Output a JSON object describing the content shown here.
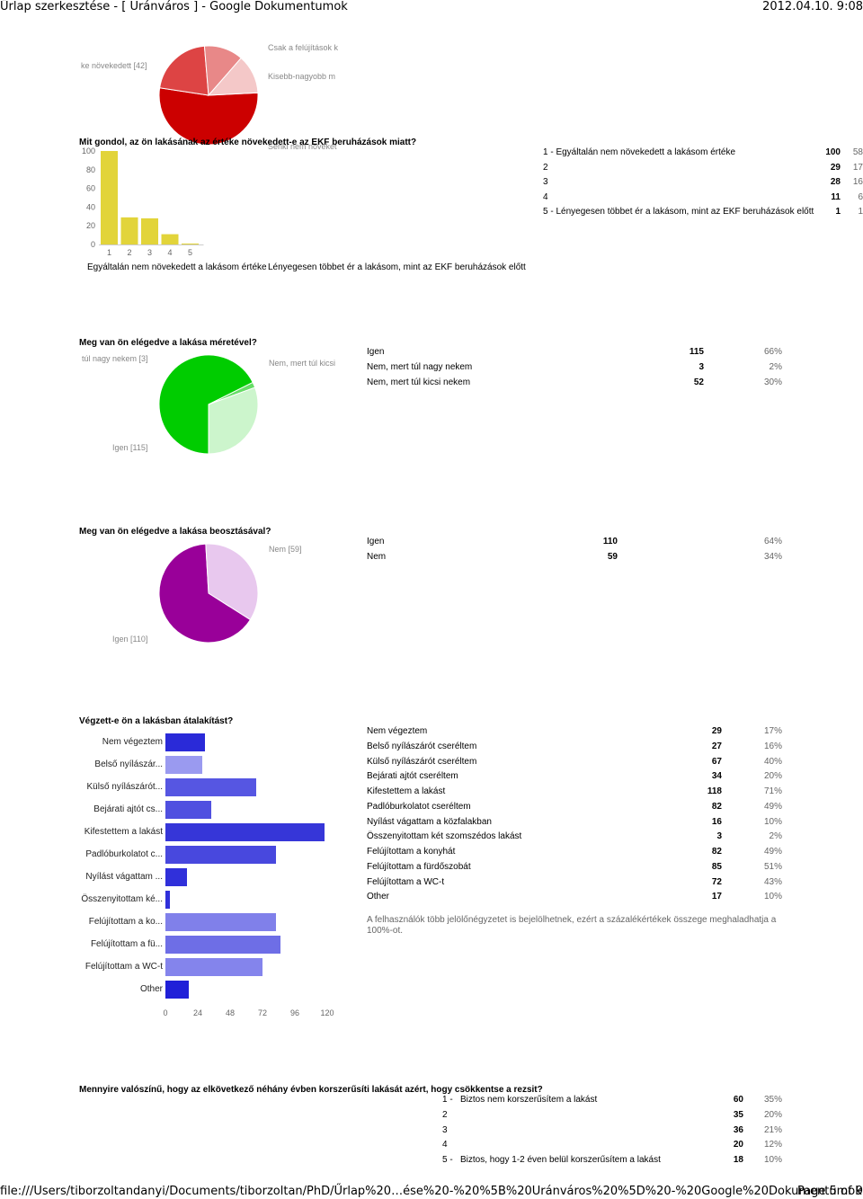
{
  "header": {
    "title": "Űrlap szerkesztése - [ Uránváros ] - Google Dokumentumok",
    "datetime": "2012.04.10. 9:08"
  },
  "footer": {
    "path": "file:///Users/tiborzoltandanyi/Documents/tiborzoltan/PhD/Űrlap%20…ése%20-%20%5B%20Uránváros%20%5D%20-%20Google%20Dokumentumok.html",
    "page": "Page 5 of 9"
  },
  "top_pie": {
    "labels": [
      "ke növekedett [42]",
      "Csak a felújítások k",
      "Kisebb-nagyobb m",
      "Senki nem növeket"
    ],
    "colors": [
      "#cc0000",
      "#dd4444",
      "#e88888",
      "#f4c8c8"
    ]
  },
  "q1": {
    "question": "Mit gondol, az ön lakásának az értéke növekedett-e az EKF beruházások miatt?",
    "rows": [
      {
        "label": "1 - Egyáltalán nem növekedett a lakásom értéke",
        "count": "100",
        "pct": "58"
      },
      {
        "label": "2",
        "count": "29",
        "pct": "17"
      },
      {
        "label": "3",
        "count": "28",
        "pct": "16"
      },
      {
        "label": "4",
        "count": "11",
        "pct": "6"
      },
      {
        "label": "5 - Lényegesen többet ér a lakásom, mint az EKF beruházások előtt",
        "count": "1",
        "pct": "1"
      }
    ],
    "left_caption": "Egyáltalán nem növekedett a lakásom értéke",
    "right_caption": "Lényegesen többet ér a lakásom, mint az EKF beruházások előtt",
    "color": "#e2d43a"
  },
  "q2": {
    "question": "Meg van ön elégedve a lakása méretével?",
    "rows": [
      {
        "label": "Igen",
        "count": "115",
        "pct": "66%"
      },
      {
        "label": "Nem, mert túl nagy nekem",
        "count": "3",
        "pct": "2%"
      },
      {
        "label": "Nem, mert túl kicsi nekem",
        "count": "52",
        "pct": "30%"
      }
    ],
    "pie_labels": [
      "túl nagy nekem [3]",
      "Nem, mert túl kicsi",
      "Igen [115]"
    ],
    "colors": [
      "#00cc00",
      "#66dd66",
      "#ccf5cc"
    ]
  },
  "q3": {
    "question": "Meg van ön elégedve a lakása beosztásával?",
    "rows": [
      {
        "label": "Igen",
        "count": "110",
        "pct": "64%"
      },
      {
        "label": "Nem",
        "count": "59",
        "pct": "34%"
      }
    ],
    "pie_labels": [
      "Nem [59]",
      "Igen [110]"
    ],
    "colors": [
      "#990099",
      "#e8c8ee"
    ]
  },
  "q4": {
    "question": "Végzett-e ön a lakásban átalakítást?",
    "rows": [
      {
        "label": "Nem végeztem",
        "count": "29",
        "pct": "17%"
      },
      {
        "label": "Belső nyílászárót cseréltem",
        "count": "27",
        "pct": "16%"
      },
      {
        "label": "Külső nyílászárót cseréltem",
        "count": "67",
        "pct": "40%"
      },
      {
        "label": "Bejárati ajtót cseréltem",
        "count": "34",
        "pct": "20%"
      },
      {
        "label": "Kifestettem a lakást",
        "count": "118",
        "pct": "71%"
      },
      {
        "label": "Padlóburkolatot cseréltem",
        "count": "82",
        "pct": "49%"
      },
      {
        "label": "Nyílást vágattam a közfalakban",
        "count": "16",
        "pct": "10%"
      },
      {
        "label": "Összenyitottam két szomszédos lakást",
        "count": "3",
        "pct": "2%"
      },
      {
        "label": "Felújítottam a konyhát",
        "count": "82",
        "pct": "49%"
      },
      {
        "label": "Felújítottam a fürdőszobát",
        "count": "85",
        "pct": "51%"
      },
      {
        "label": "Felújítottam a WC-t",
        "count": "72",
        "pct": "43%"
      },
      {
        "label": "Other",
        "count": "17",
        "pct": "10%"
      }
    ],
    "note": "A felhasználók több jelölőnégyzetet is bejelölhetnek, ezért a százalékértékek összege meghaladhatja a 100%-ot."
  },
  "q5": {
    "question": "Mennyire valószínű, hogy az elkövetkező néhány évben korszerűsíti lakását azért, hogy csökkentse a rezsit?",
    "rows": [
      {
        "num": "1 -",
        "label": "Biztos nem korszerűsítem a lakást",
        "count": "60",
        "pct": "35%"
      },
      {
        "num": "2",
        "label": "",
        "count": "35",
        "pct": "20%"
      },
      {
        "num": "3",
        "label": "",
        "count": "36",
        "pct": "21%"
      },
      {
        "num": "4",
        "label": "",
        "count": "20",
        "pct": "12%"
      },
      {
        "num": "5 -",
        "label": "Biztos, hogy 1-2 éven belül korszerűsítem a lakást",
        "count": "18",
        "pct": "10%"
      }
    ]
  },
  "chart_data": [
    {
      "type": "bar",
      "title": "Mit gondol, az ön lakásának az értéke növekedett-e az EKF beruházások miatt?",
      "categories": [
        "1",
        "2",
        "3",
        "4",
        "5"
      ],
      "values": [
        100,
        29,
        28,
        11,
        1
      ],
      "ylim": [
        0,
        100
      ],
      "yticks": [
        "0",
        "20",
        "40",
        "60",
        "80",
        "100"
      ],
      "grid": false
    },
    {
      "type": "pie",
      "title": "Meg van ön elégedve a lakása méretével?",
      "categories": [
        "Igen",
        "Nem, mert túl nagy nekem",
        "Nem, mert túl kicsi nekem"
      ],
      "values": [
        115,
        3,
        52
      ]
    },
    {
      "type": "pie",
      "title": "Meg van ön elégedve a lakása beosztásával?",
      "categories": [
        "Igen",
        "Nem"
      ],
      "values": [
        110,
        59
      ]
    },
    {
      "type": "bar",
      "orientation": "horizontal",
      "title": "Végzett-e ön a lakásban átalakítást?",
      "categories": [
        "Nem végeztem",
        "Belső nyílászár...",
        "Külső nyílászárót...",
        "Bejárati ajtót cs...",
        "Kifestettem a lakást",
        "Padlóburkolatot c...",
        "Nyílást vágattam ...",
        "Összenyitottam ké...",
        "Felújítottam a ko...",
        "Felújítottam a fü...",
        "Felújítottam a WC-t",
        "Other"
      ],
      "values": [
        29,
        27,
        67,
        34,
        118,
        82,
        16,
        3,
        82,
        85,
        72,
        17
      ],
      "xlim": [
        0,
        120
      ],
      "xticks": [
        "0",
        "24",
        "48",
        "72",
        "96",
        "120"
      ],
      "colors": [
        "#2a2ad8",
        "#9a9af0",
        "#5656e2",
        "#5050e0",
        "#3636d8",
        "#4848de",
        "#3030da",
        "#3030da",
        "#8080ea",
        "#6e6ee6",
        "#8484ec",
        "#2020d8"
      ]
    }
  ]
}
